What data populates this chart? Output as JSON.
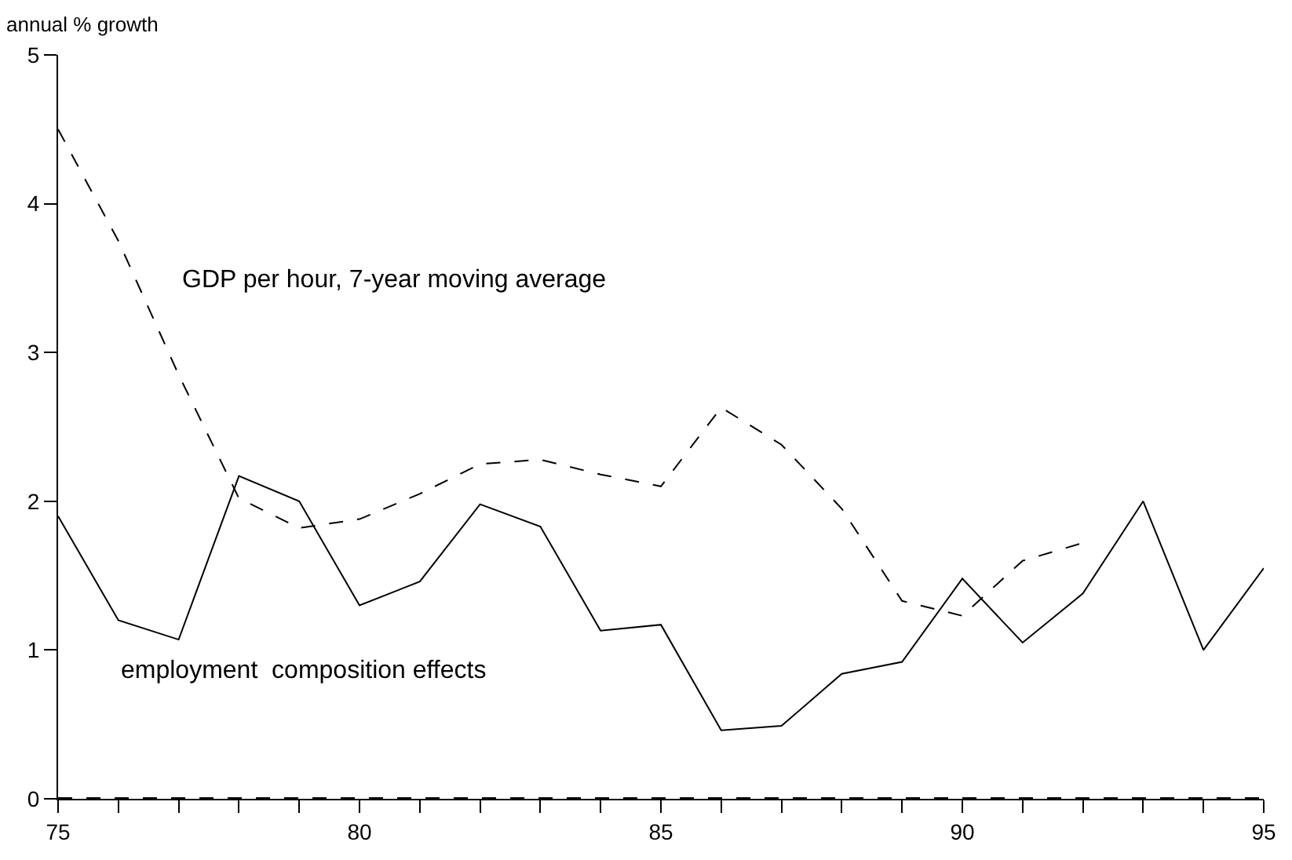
{
  "chart_data": {
    "type": "line",
    "ylabel": "annual % growth",
    "x": [
      75,
      76,
      77,
      78,
      79,
      80,
      81,
      82,
      83,
      84,
      85,
      86,
      87,
      88,
      89,
      90,
      91,
      92,
      93,
      94,
      95
    ],
    "series": [
      {
        "name": "GDP per hour, 7-year moving average",
        "color": "#000000",
        "line_style": "dashed",
        "values": [
          4.5,
          3.75,
          2.85,
          2.02,
          1.82,
          1.88,
          2.05,
          2.25,
          2.28,
          2.18,
          2.1,
          2.63,
          2.38,
          1.95,
          1.33,
          1.23,
          1.6,
          1.72,
          null,
          null,
          null
        ]
      },
      {
        "name": "employment  composition effects",
        "color": "#000000",
        "line_style": "solid",
        "values": [
          1.9,
          1.2,
          1.07,
          2.17,
          2.0,
          1.3,
          1.46,
          1.98,
          1.83,
          1.13,
          1.17,
          0.46,
          0.49,
          0.84,
          0.92,
          1.48,
          1.05,
          1.38,
          2.0,
          1.0,
          1.55
        ]
      }
    ],
    "xlim": [
      75,
      95
    ],
    "xticks": [
      75,
      {
        "value": 76,
        "label": null
      },
      {
        "value": 77,
        "label": null
      },
      {
        "value": 78,
        "label": null
      },
      {
        "value": 79,
        "label": null
      },
      80,
      {
        "value": 81,
        "label": null
      },
      {
        "value": 82,
        "label": null
      },
      {
        "value": 83,
        "label": null
      },
      {
        "value": 84,
        "label": null
      },
      85,
      {
        "value": 86,
        "label": null
      },
      {
        "value": 87,
        "label": null
      },
      {
        "value": 88,
        "label": null
      },
      {
        "value": 89,
        "label": null
      },
      90,
      {
        "value": 91,
        "label": null
      },
      {
        "value": 92,
        "label": null
      },
      {
        "value": 93,
        "label": null
      },
      {
        "value": 94,
        "label": null
      },
      95
    ],
    "ylim": [
      0,
      5
    ],
    "yticks": [
      0,
      1,
      2,
      3,
      4,
      5
    ],
    "ref_lines": [
      {
        "axis": "y",
        "value": 0,
        "color": "#000000",
        "line_style": "dashed"
      }
    ],
    "legend": false,
    "marker": "none"
  }
}
